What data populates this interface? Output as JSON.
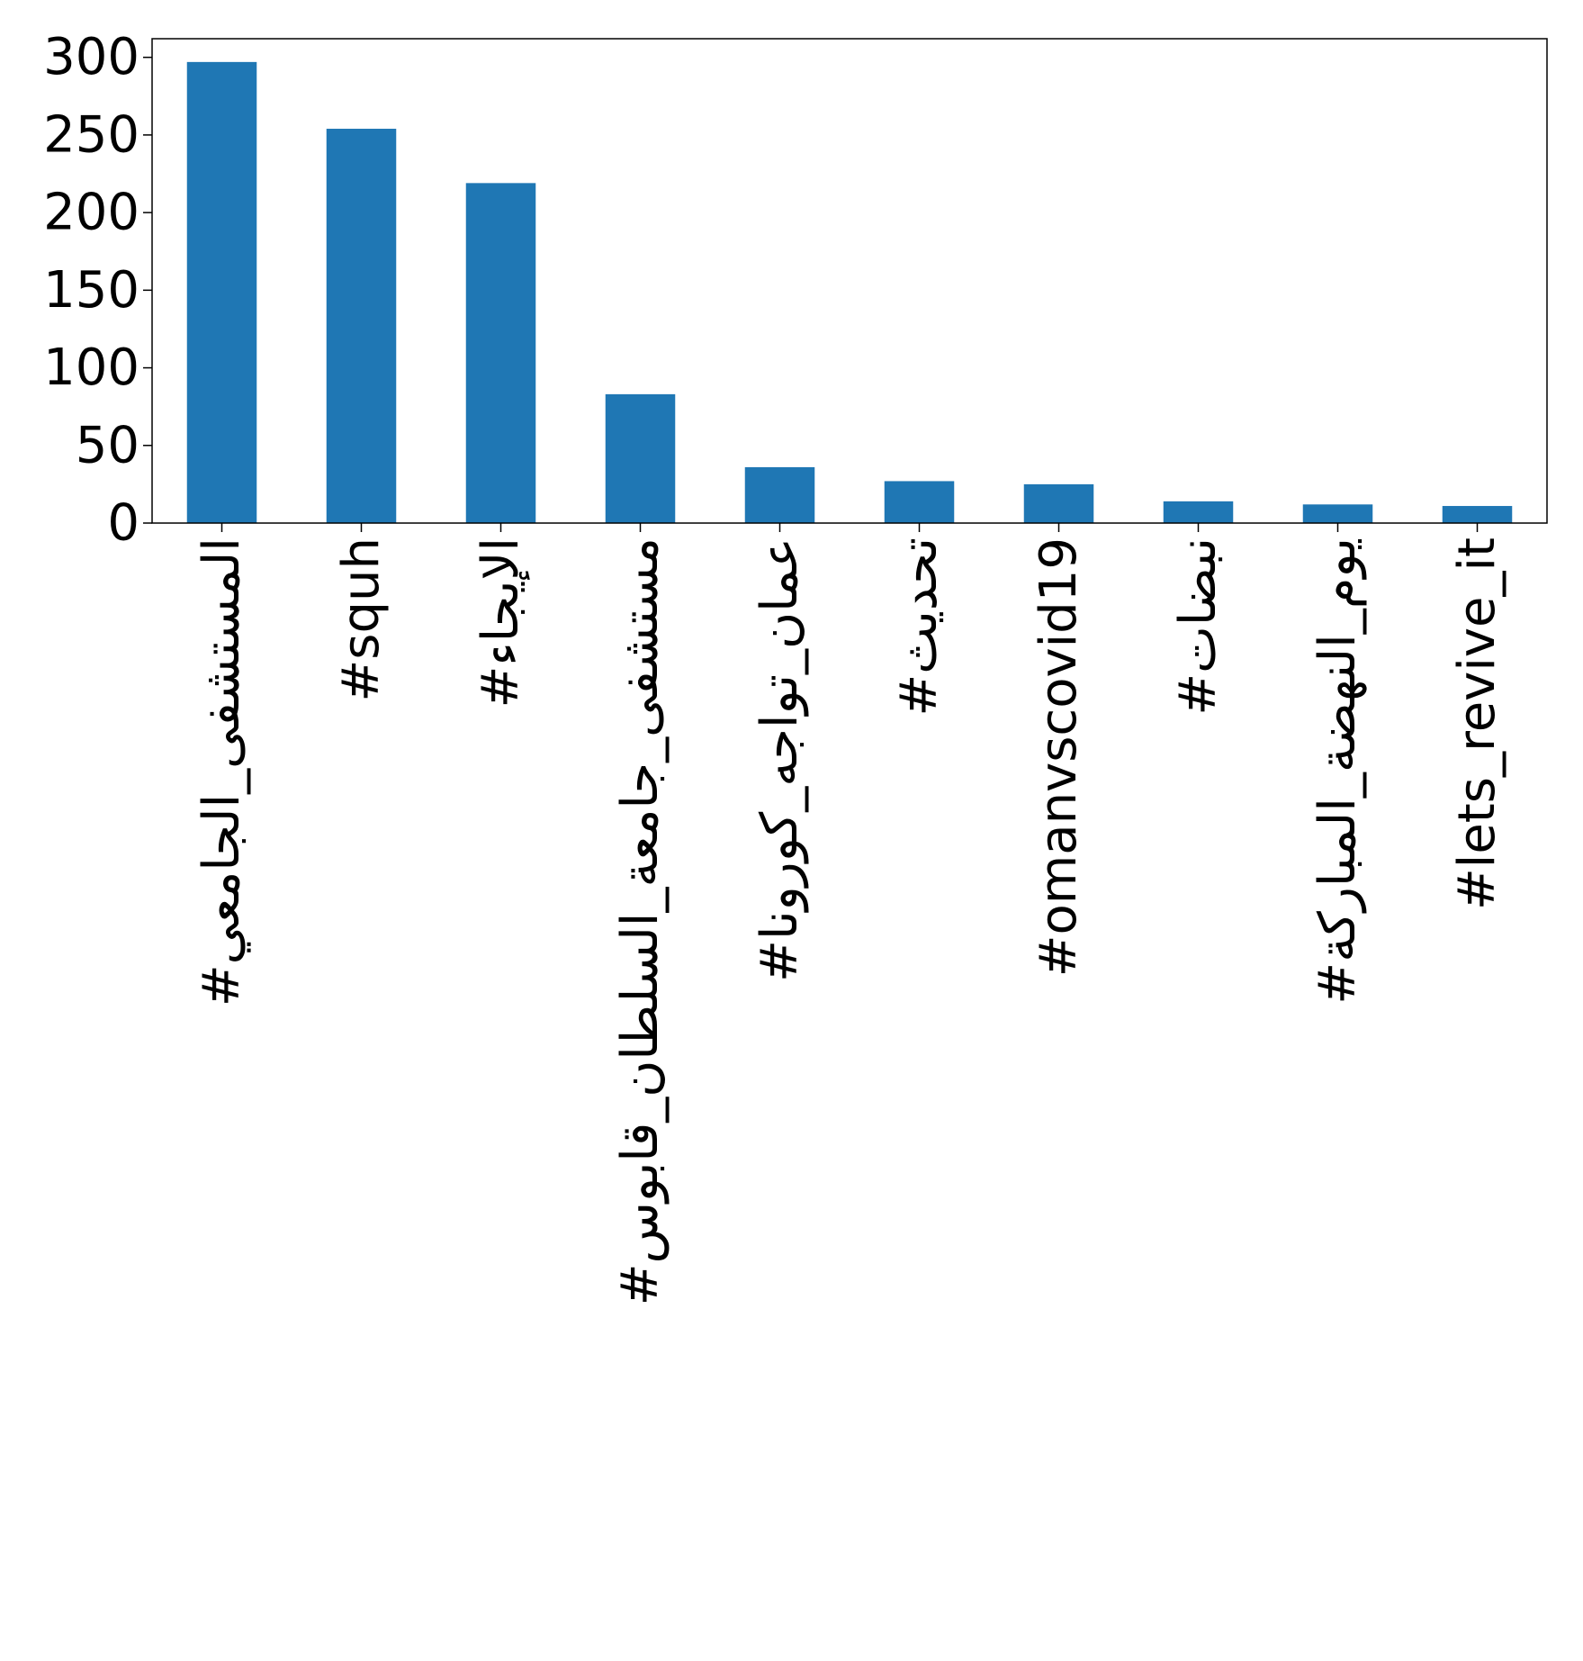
{
  "chart_data": {
    "type": "bar",
    "title": "",
    "xlabel": "",
    "ylabel": "",
    "categories": [
      "#المستشفى_الجامعي",
      "#squh",
      "#الإيجاء",
      "#مستشفى_جامعة_السلطان_قابوس",
      "#عمان_تواجه_كورونا",
      "#تحديث",
      "#omanvscovid19",
      "#نبضات",
      "#يوم_النهضة_المباركة",
      "#lets_revive_it"
    ],
    "values": [
      297,
      254,
      219,
      83,
      36,
      27,
      25,
      14,
      12,
      11
    ],
    "ylim": [
      0,
      312
    ],
    "yticks": [
      0,
      50,
      100,
      150,
      200,
      250,
      300
    ],
    "bar_color": "#1f77b4",
    "grid": false,
    "legend": "none"
  }
}
